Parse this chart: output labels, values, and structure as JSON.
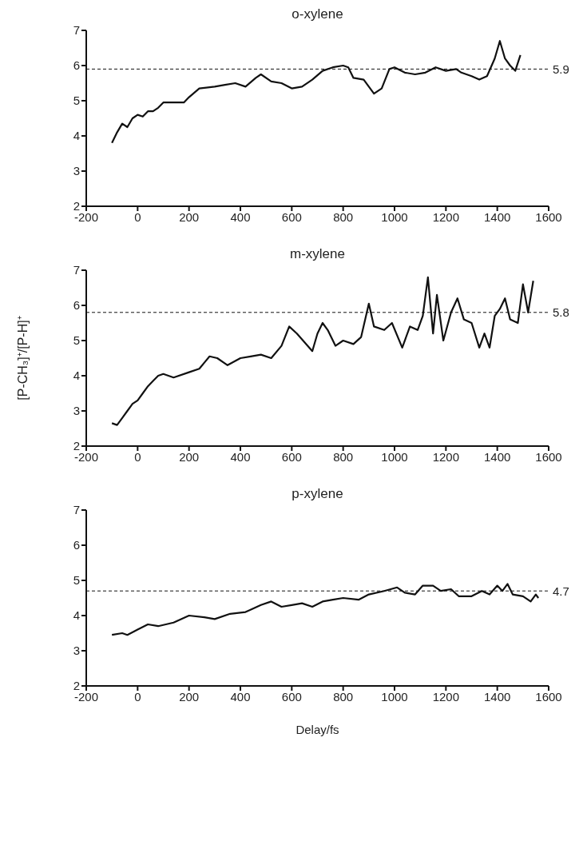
{
  "chart_data": [
    {
      "type": "line",
      "title": "o-xylene",
      "x": [
        -100,
        -80,
        -60,
        -40,
        -20,
        0,
        20,
        40,
        60,
        80,
        100,
        140,
        180,
        200,
        240,
        300,
        340,
        380,
        420,
        460,
        480,
        520,
        560,
        600,
        640,
        680,
        720,
        760,
        800,
        820,
        840,
        880,
        900,
        920,
        950,
        980,
        1000,
        1040,
        1080,
        1120,
        1160,
        1200,
        1240,
        1260,
        1300,
        1330,
        1360,
        1390,
        1410,
        1430,
        1450,
        1470,
        1490
      ],
      "values": [
        3.8,
        4.1,
        4.35,
        4.25,
        4.5,
        4.6,
        4.55,
        4.7,
        4.7,
        4.8,
        4.95,
        4.95,
        4.95,
        5.1,
        5.35,
        5.4,
        5.45,
        5.5,
        5.4,
        5.65,
        5.75,
        5.55,
        5.5,
        5.35,
        5.4,
        5.6,
        5.85,
        5.95,
        6.0,
        5.95,
        5.65,
        5.6,
        5.4,
        5.2,
        5.35,
        5.9,
        5.95,
        5.8,
        5.75,
        5.8,
        5.95,
        5.85,
        5.9,
        5.8,
        5.7,
        5.6,
        5.7,
        6.2,
        6.7,
        6.2,
        6.0,
        5.85,
        6.3
      ],
      "color": "#111111",
      "xlim": [
        -200,
        1600
      ],
      "xticks": [
        -200,
        0,
        200,
        400,
        600,
        800,
        1000,
        1200,
        1400,
        1600
      ],
      "ylim": [
        2,
        7
      ],
      "yticks": [
        2,
        3,
        4,
        5,
        6,
        7
      ],
      "ref_lines": [
        {
          "axis": "y",
          "value": 5.9,
          "label": "5.9",
          "line_style": "dashed"
        }
      ]
    },
    {
      "type": "line",
      "title": "m-xylene",
      "ylabel": "[P-CH₃]⁺/[P-H]⁺",
      "x": [
        -100,
        -80,
        -60,
        -40,
        -20,
        0,
        20,
        40,
        60,
        80,
        100,
        140,
        200,
        240,
        280,
        310,
        350,
        400,
        440,
        480,
        520,
        560,
        590,
        620,
        680,
        700,
        720,
        740,
        770,
        800,
        840,
        870,
        900,
        920,
        960,
        990,
        1030,
        1060,
        1090,
        1110,
        1130,
        1150,
        1165,
        1190,
        1220,
        1245,
        1270,
        1300,
        1330,
        1350,
        1370,
        1390,
        1410,
        1430,
        1450,
        1480,
        1500,
        1520,
        1540
      ],
      "values": [
        2.65,
        2.6,
        2.8,
        3.0,
        3.2,
        3.3,
        3.5,
        3.7,
        3.85,
        4.0,
        4.05,
        3.95,
        4.1,
        4.2,
        4.55,
        4.5,
        4.3,
        4.5,
        4.55,
        4.6,
        4.5,
        4.85,
        5.4,
        5.2,
        4.7,
        5.2,
        5.5,
        5.3,
        4.85,
        5.0,
        4.9,
        5.1,
        6.05,
        5.4,
        5.3,
        5.5,
        4.8,
        5.4,
        5.3,
        5.7,
        6.8,
        5.2,
        6.3,
        5.0,
        5.8,
        6.2,
        5.6,
        5.5,
        4.8,
        5.2,
        4.8,
        5.7,
        5.9,
        6.2,
        5.6,
        5.5,
        6.6,
        5.8,
        6.7
      ],
      "color": "#111111",
      "xlim": [
        -200,
        1600
      ],
      "xticks": [
        -200,
        0,
        200,
        400,
        600,
        800,
        1000,
        1200,
        1400,
        1600
      ],
      "ylim": [
        2,
        7
      ],
      "yticks": [
        2,
        3,
        4,
        5,
        6,
        7
      ],
      "ref_lines": [
        {
          "axis": "y",
          "value": 5.8,
          "label": "5.8",
          "line_style": "dashed"
        }
      ]
    },
    {
      "type": "line",
      "title": "p-xylene",
      "xlabel": "Delay/fs",
      "x": [
        -100,
        -60,
        -40,
        0,
        40,
        80,
        140,
        200,
        260,
        300,
        360,
        420,
        480,
        520,
        560,
        600,
        640,
        680,
        720,
        760,
        800,
        860,
        900,
        960,
        1010,
        1040,
        1080,
        1110,
        1150,
        1180,
        1220,
        1250,
        1300,
        1340,
        1370,
        1400,
        1420,
        1440,
        1460,
        1500,
        1530,
        1550,
        1560
      ],
      "values": [
        3.45,
        3.5,
        3.45,
        3.6,
        3.75,
        3.7,
        3.8,
        4.0,
        3.95,
        3.9,
        4.05,
        4.1,
        4.3,
        4.4,
        4.25,
        4.3,
        4.35,
        4.25,
        4.4,
        4.45,
        4.5,
        4.45,
        4.6,
        4.7,
        4.8,
        4.65,
        4.6,
        4.85,
        4.85,
        4.7,
        4.75,
        4.55,
        4.55,
        4.7,
        4.6,
        4.85,
        4.7,
        4.9,
        4.6,
        4.55,
        4.4,
        4.6,
        4.5
      ],
      "color": "#111111",
      "xlim": [
        -200,
        1600
      ],
      "xticks": [
        -200,
        0,
        200,
        400,
        600,
        800,
        1000,
        1200,
        1400,
        1600
      ],
      "ylim": [
        2,
        7
      ],
      "yticks": [
        2,
        3,
        4,
        5,
        6,
        7
      ],
      "ref_lines": [
        {
          "axis": "y",
          "value": 4.7,
          "label": "4.7",
          "line_style": "dashed"
        }
      ]
    }
  ]
}
